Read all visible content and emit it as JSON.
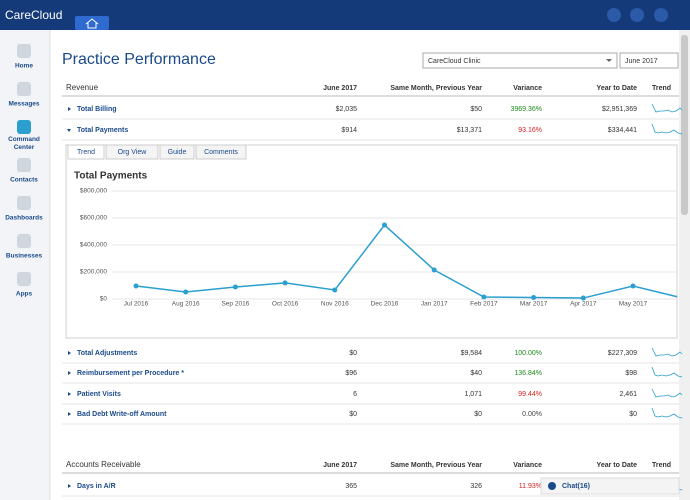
{
  "app": {
    "logo": "CareCloud"
  },
  "sidebar": [
    "Home",
    "Messages",
    "Command Center",
    "Contacts",
    "Dashboards",
    "Businesses",
    "Apps"
  ],
  "page": {
    "title": "Practice Performance",
    "clinic": "CareCloud Clinic",
    "period": "June 2017"
  },
  "revenue": {
    "columns": [
      "Revenue",
      "June 2017",
      "Same Month, Previous Year",
      "Variance",
      "Year to Date",
      "Trend"
    ],
    "rows": [
      {
        "label": "Total Billing",
        "current": "$2,035",
        "previous": "$50",
        "variance": "3969.36%",
        "ytd": "$2,951,369",
        "variance_color": "#1e8a1e"
      },
      {
        "label": "Total Payments",
        "current": "$914",
        "previous": "$13,371",
        "variance": "93.16%",
        "ytd": "$334,441",
        "variance_color": "#d61e1e"
      },
      {
        "label": "Total Adjustments",
        "current": "$0",
        "previous": "$9,584",
        "variance": "100.00%",
        "ytd": "$227,309",
        "variance_color": "#1e8a1e"
      },
      {
        "label": "Reimbursement per Procedure *",
        "current": "$96",
        "previous": "$40",
        "variance": "136.84%",
        "ytd": "$98",
        "variance_color": "#1e8a1e"
      },
      {
        "label": "Patient Visits",
        "current": "6",
        "previous": "1,071",
        "variance": "99.44%",
        "ytd": "2,461",
        "variance_color": "#d61e1e"
      },
      {
        "label": "Bad Debt Write-off Amount",
        "current": "$0",
        "previous": "$0",
        "variance": "0.00%",
        "ytd": "$0",
        "variance_color": "#444444"
      }
    ]
  },
  "tabs": [
    "Trend",
    "Org View",
    "Guide",
    "Comments"
  ],
  "chart": {
    "type": "line",
    "title": "Total Payments",
    "categories": [
      "Jul 2016",
      "Aug 2016",
      "Sep 2016",
      "Oct 2016",
      "Nov 2016",
      "Dec 2016",
      "Jan 2017",
      "Feb 2017",
      "Mar 2017",
      "Apr 2017",
      "May 2017",
      null
    ],
    "values": [
      96000,
      52000,
      89000,
      119000,
      67000,
      548000,
      215000,
      15000,
      11000,
      7000,
      96000,
      7000
    ],
    "color": "#2a9fd0",
    "ylim": [
      0,
      800000
    ],
    "yticks": [
      {
        "value": 0,
        "label": "$0"
      },
      {
        "value": 200000,
        "label": "$200,000"
      },
      {
        "value": 400000,
        "label": "$400,000"
      },
      {
        "value": 600000,
        "label": "$600,000"
      },
      {
        "value": 800000,
        "label": "$800,000"
      }
    ],
    "grid": true
  },
  "receivable": {
    "columns": [
      "Accounts Receivable",
      "June 2017",
      "Same Month, Previous Year",
      "Variance",
      "Year to Date",
      "Trend"
    ],
    "rows": [
      {
        "label": "Days in A/R",
        "current": "365",
        "previous": "326",
        "variance": "11.93%",
        "variance_color": "#d61e1e"
      }
    ]
  },
  "chat": "Chat(16)"
}
